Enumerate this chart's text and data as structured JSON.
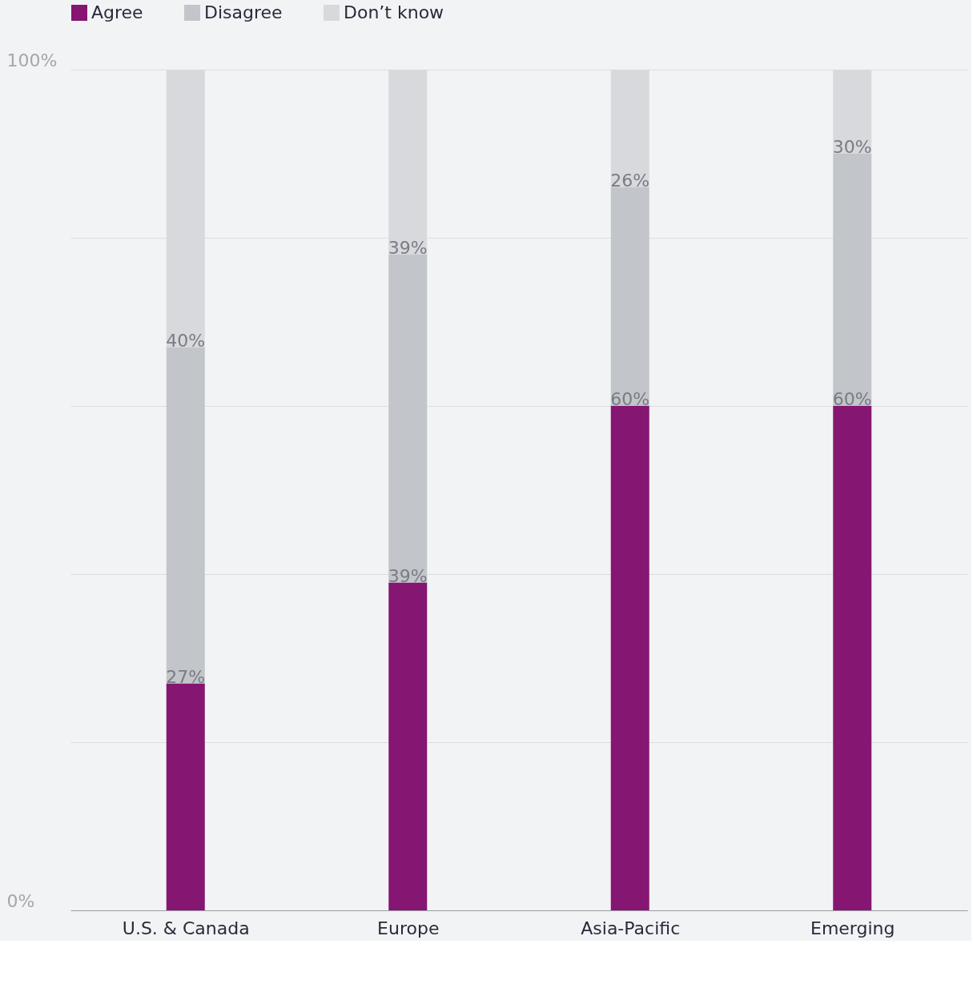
{
  "chart_data": {
    "type": "bar",
    "stacked": true,
    "categories": [
      "U.S. & Canada",
      "Europe",
      "Asia-Pacific",
      "Emerging"
    ],
    "series": [
      {
        "name": "Agree",
        "color": "#851671",
        "values": [
          27,
          39,
          60,
          60
        ],
        "value_labels": [
          "27%",
          "39%",
          "60%",
          "60%"
        ]
      },
      {
        "name": "Disagree",
        "color": "#c2c5ca",
        "values": [
          40,
          39,
          26,
          30
        ],
        "value_labels": [
          "40%",
          "39%",
          "26%",
          "30%"
        ]
      },
      {
        "name": "Don’t know",
        "color": "#d7d9dc",
        "values": [
          33,
          22,
          14,
          10
        ],
        "value_labels": [
          null,
          null,
          null,
          null
        ]
      }
    ],
    "ylim": [
      0,
      100
    ],
    "yticks": [
      {
        "value": 0,
        "label": "0%"
      },
      {
        "value": 20,
        "label": null
      },
      {
        "value": 40,
        "label": null
      },
      {
        "value": 60,
        "label": null
      },
      {
        "value": 80,
        "label": null
      },
      {
        "value": 100,
        "label": "100%"
      }
    ],
    "grid": "y",
    "legend": "top"
  }
}
